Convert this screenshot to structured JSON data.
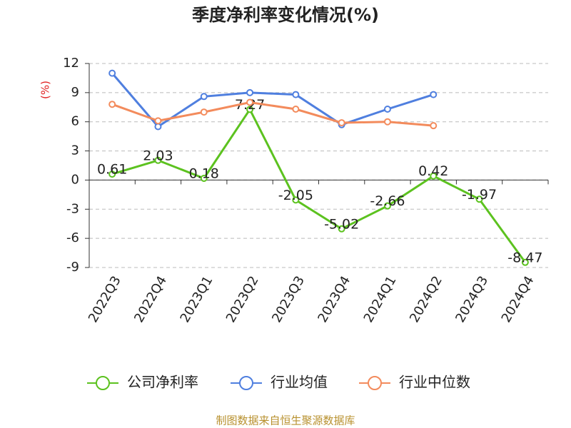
{
  "chart_data": {
    "type": "line",
    "title": "季度净利率变化情况(%)",
    "y_label": "(%)",
    "categories": [
      "2022Q3",
      "2022Q4",
      "2023Q1",
      "2023Q2",
      "2023Q3",
      "2023Q4",
      "2024Q1",
      "2024Q2",
      "2024Q3",
      "2024Q4"
    ],
    "series": [
      {
        "name": "公司净利率",
        "color": "#5cc21f",
        "values": [
          0.61,
          2.03,
          0.18,
          7.27,
          -2.05,
          -5.02,
          -2.66,
          0.42,
          -1.97,
          -8.47
        ],
        "show_labels": true
      },
      {
        "name": "行业均值",
        "color": "#4f7fdf",
        "values": [
          11.0,
          5.5,
          8.6,
          9.0,
          8.8,
          5.7,
          7.3,
          8.8,
          null,
          null
        ]
      },
      {
        "name": "行业中位数",
        "color": "#f38b5c",
        "values": [
          7.8,
          6.1,
          7.0,
          8.0,
          7.3,
          5.9,
          6.0,
          5.6,
          null,
          null
        ]
      }
    ],
    "ylim": [
      -9,
      12
    ],
    "yticks": [
      -9,
      -6,
      -3,
      0,
      3,
      6,
      9,
      12
    ],
    "grid": true,
    "source": "制图数据来自恒生聚源数据库"
  }
}
